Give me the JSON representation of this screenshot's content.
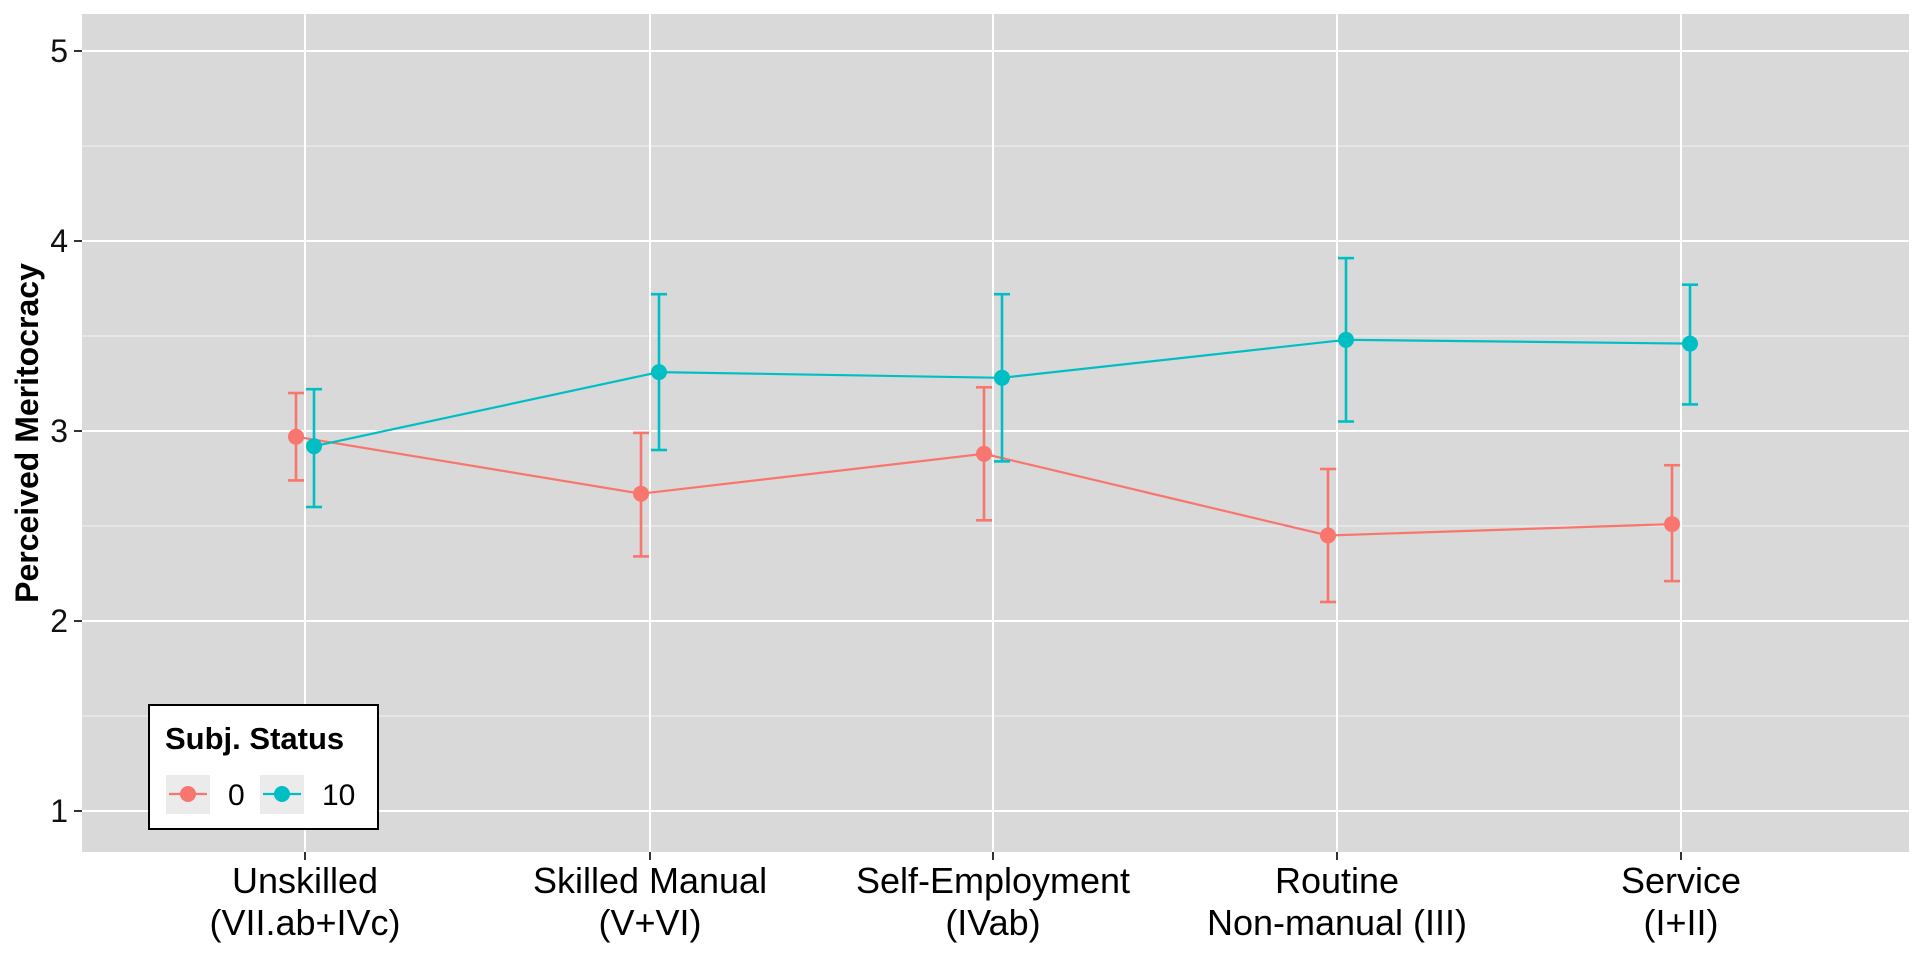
{
  "chart_data": {
    "type": "line",
    "title": "",
    "xlabel": "",
    "ylabel": "Perceived Meritocracy",
    "ylim": [
      0.85,
      5.25
    ],
    "yticks": [
      1,
      2,
      3,
      4,
      5
    ],
    "ytick_labels": [
      "1",
      "2",
      "3",
      "4",
      "5"
    ],
    "categories": [
      [
        "Unskilled",
        "(VII.ab+IVc)"
      ],
      [
        "Skilled Manual",
        "(V+VI)"
      ],
      [
        "Self-Employment",
        "(IVab)"
      ],
      [
        "Routine",
        "Non-manual (III)"
      ],
      [
        "Service",
        "(I+II)"
      ]
    ],
    "legend": {
      "title": "Subj. Status",
      "position": "bottom-left"
    },
    "grid": true,
    "series": [
      {
        "name": "0",
        "color": "#F8766D",
        "values": [
          2.97,
          2.67,
          2.88,
          2.45,
          2.51
        ],
        "lower": [
          2.74,
          2.34,
          2.53,
          2.1,
          2.21
        ],
        "upper": [
          3.2,
          2.99,
          3.23,
          2.8,
          2.82
        ]
      },
      {
        "name": "10",
        "color": "#00BFC4",
        "values": [
          2.92,
          3.31,
          3.28,
          3.48,
          3.46
        ],
        "lower": [
          2.6,
          2.9,
          2.84,
          3.05,
          3.14
        ],
        "upper": [
          3.22,
          3.72,
          3.72,
          3.91,
          3.77
        ]
      }
    ]
  }
}
